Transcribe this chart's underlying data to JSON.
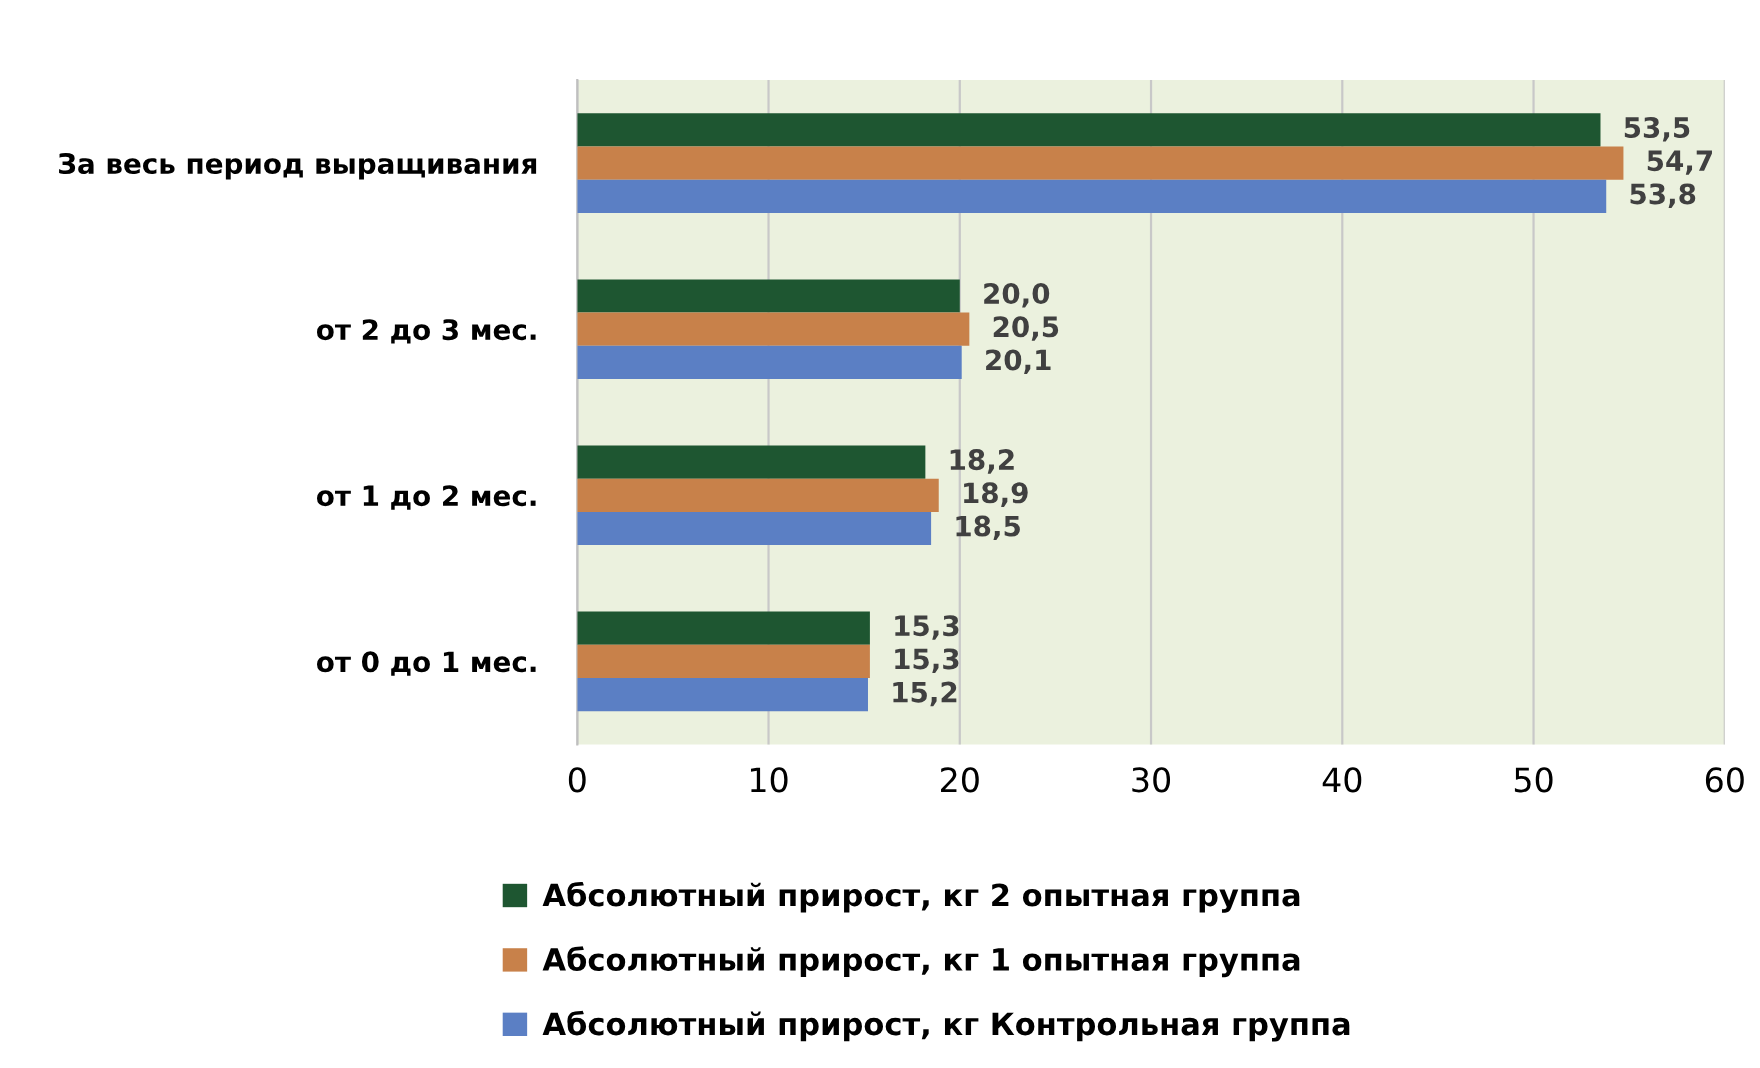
{
  "chart_data": {
    "type": "bar",
    "orientation": "horizontal",
    "categories": [
      "За весь период выращивания",
      "от 2 до 3 мес.",
      "от 1 до 2 мес.",
      "от 0 до 1 мес."
    ],
    "series": [
      {
        "name": "Абсолютный прирост, кг 2 опытная группа",
        "color": "#1e5631",
        "values": [
          53.5,
          20.0,
          18.2,
          15.3
        ],
        "value_labels": [
          "53,5",
          "20,0",
          "18,2",
          "15,3"
        ]
      },
      {
        "name": "Абсолютный прирост, кг 1 опытная группа",
        "color": "#c8814a",
        "values": [
          54.7,
          20.5,
          18.9,
          15.3
        ],
        "value_labels": [
          "54,7",
          "20,5",
          "18,9",
          "15,3"
        ]
      },
      {
        "name": "Абсолютный прирост, кг Контрольная группа",
        "color": "#5b7fc4",
        "values": [
          53.8,
          20.1,
          18.5,
          15.2
        ],
        "value_labels": [
          "53,8",
          "20,1",
          "18,5",
          "15,2"
        ]
      }
    ],
    "xlim": [
      0,
      60
    ],
    "xticks": [
      0,
      10,
      20,
      30,
      40,
      50,
      60
    ],
    "grid": "x",
    "legend": "bottom"
  }
}
